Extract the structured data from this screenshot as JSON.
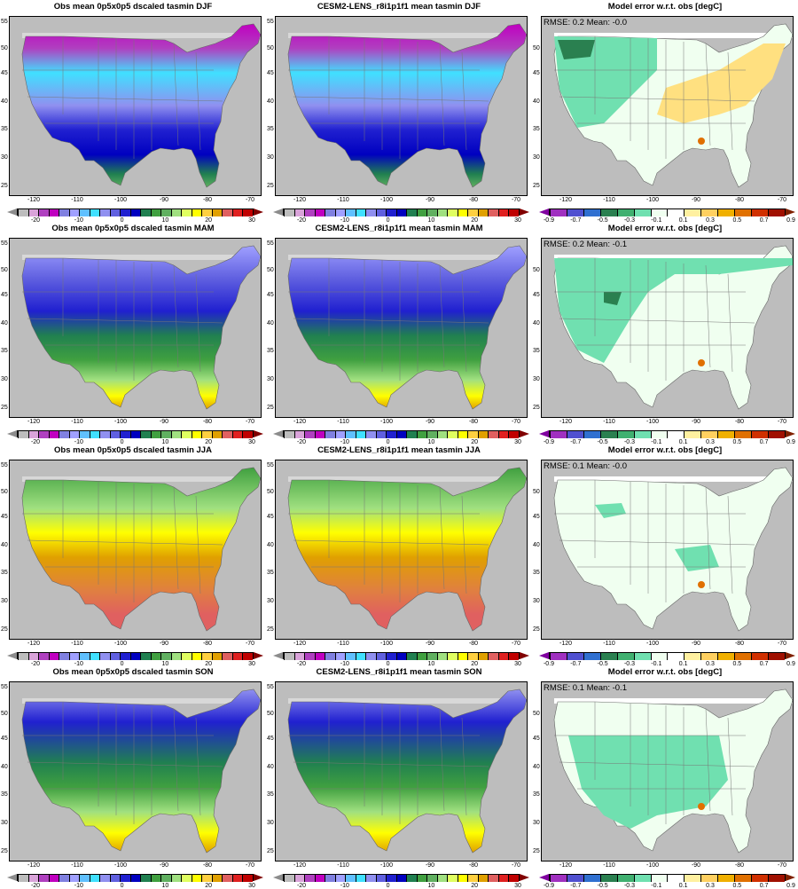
{
  "rows": [
    {
      "season": "DJF",
      "obs_title": "Obs mean 0p5x0p5 dscaled tasmin DJF",
      "model_title": "CESM2-LENS_r8i1p1f1 mean tasmin DJF",
      "err_title": "Model error w.r.t. obs [degC]",
      "stats": "RMSE: 0.2  Mean: -0.0"
    },
    {
      "season": "MAM",
      "obs_title": "Obs mean 0p5x0p5 dscaled tasmin MAM",
      "model_title": "CESM2-LENS_r8i1p1f1 mean tasmin MAM",
      "err_title": "Model error w.r.t. obs [degC]",
      "stats": "RMSE: 0.2  Mean: -0.1"
    },
    {
      "season": "JJA",
      "obs_title": "Obs mean 0p5x0p5 dscaled tasmin JJA",
      "model_title": "CESM2-LENS_r8i1p1f1 mean tasmin JJA",
      "err_title": "Model error w.r.t. obs [degC]",
      "stats": "RMSE: 0.1  Mean: -0.0"
    },
    {
      "season": "SON",
      "obs_title": "Obs mean 0p5x0p5 dscaled tasmin SON",
      "model_title": "CESM2-LENS_r8i1p1f1 mean tasmin SON",
      "err_title": "Model error w.r.t. obs [degC]",
      "stats": "RMSE: 0.1  Mean: -0.1"
    }
  ],
  "axes": {
    "lat_ticks": [
      "55",
      "50",
      "45",
      "40",
      "35",
      "30",
      "25"
    ],
    "lon_ticks": [
      "-120",
      "-110",
      "-100",
      "-90",
      "-80",
      "-70"
    ]
  },
  "temp_colorbar": {
    "colors": [
      "#8c8c8c",
      "#bdbdbd",
      "#d9a3d9",
      "#b040c0",
      "#c000c0",
      "#8080e0",
      "#a0a0ff",
      "#60c0ff",
      "#40e0ff",
      "#9090f0",
      "#6060e0",
      "#2020d0",
      "#0000c0",
      "#208050",
      "#40a040",
      "#60b060",
      "#a0e080",
      "#e0ff60",
      "#ffff00",
      "#ffd040",
      "#e0a000",
      "#e06060",
      "#e02020",
      "#c00000",
      "#800000"
    ],
    "ticks": [
      "-20",
      "-10",
      "0",
      "10",
      "20",
      "30"
    ]
  },
  "err_colorbar": {
    "colors": [
      "#8000a0",
      "#a030c0",
      "#5050d0",
      "#3070d0",
      "#2a8050",
      "#40b070",
      "#70e0b0",
      "#f0fff0",
      "#ffffff",
      "#fff0a0",
      "#ffd060",
      "#f0b000",
      "#e07000",
      "#d03000",
      "#a01000",
      "#802000"
    ],
    "ticks": [
      "-0.9",
      "-0.7",
      "-0.5",
      "-0.3",
      "-0.1",
      "0.1",
      "0.3",
      "0.5",
      "0.7",
      "0.9"
    ]
  }
}
